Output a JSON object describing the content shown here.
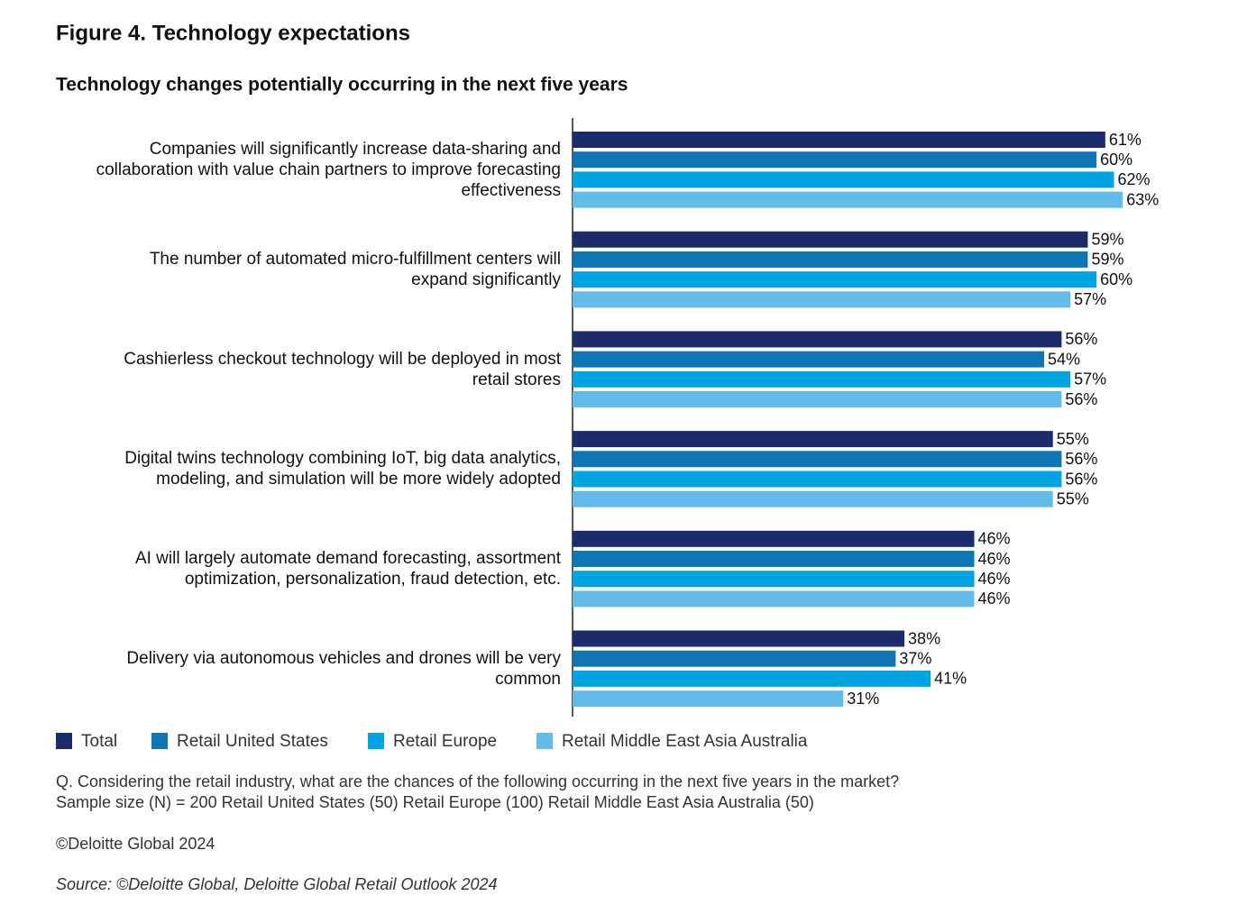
{
  "chart_data": {
    "type": "hbar",
    "title": "Figure 4. Technology expectations",
    "subtitle": "Technology changes potentially occurring in the next five years",
    "categories": [
      "Companies will significantly increase data-sharing and collaboration with value chain partners to improve forecasting effectiveness",
      "The number of automated micro-fulfillment centers will expand significantly",
      "Cashierless checkout technology will be deployed in most retail stores",
      "Digital twins technology combining IoT, big data analytics, modeling, and simulation will be more widely adopted",
      "AI will largely automate demand forecasting, assortment optimization, personalization, fraud detection, etc.",
      "Delivery via autonomous vehicles and drones will be very common"
    ],
    "series": [
      {
        "name": "Total",
        "color": "#1b2b6b",
        "values": [
          61,
          59,
          56,
          55,
          46,
          38
        ],
        "value_labels": [
          "61%",
          "59%",
          "56%",
          "55%",
          "46%",
          "38%"
        ]
      },
      {
        "name": "Retail United States",
        "color": "#0e76b3",
        "values": [
          60,
          59,
          54,
          56,
          46,
          37
        ],
        "value_labels": [
          "60%",
          "59%",
          "54%",
          "56%",
          "46%",
          "37%"
        ]
      },
      {
        "name": "Retail Europe",
        "color": "#00a4e2",
        "values": [
          62,
          60,
          57,
          56,
          46,
          41
        ],
        "value_labels": [
          "62%",
          "60%",
          "57%",
          "56%",
          "46%",
          "41%"
        ]
      },
      {
        "name": "Retail Middle East Asia Australia",
        "color": "#62bbe9",
        "values": [
          63,
          57,
          56,
          55,
          46,
          31
        ],
        "value_labels": [
          "63%",
          "57%",
          "56%",
          "55%",
          "46%",
          "31%"
        ]
      }
    ],
    "xlim": [
      0,
      70
    ],
    "legend": "bottom-left",
    "notes": [
      "Q. Considering the retail industry, what are the chances of the following occurring in the next five years in the market?",
      "Sample size (N) = 200 Retail United States (50)  Retail Europe (100) Retail Middle East Asia Australia (50)",
      "©Deloitte Global 2024"
    ],
    "source": "Source: ©Deloitte Global, Deloitte Global Retail Outlook 2024"
  }
}
